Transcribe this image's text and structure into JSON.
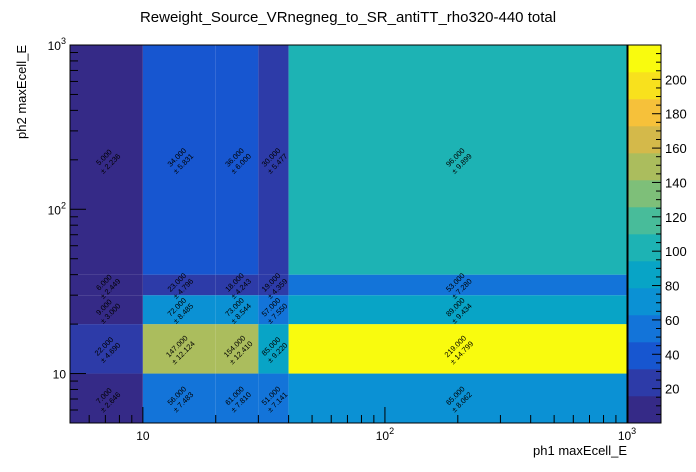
{
  "chart_data": {
    "type": "heatmap",
    "title": "Reweight_Source_VRnegneg_to_SR_antiTT_rho320-440 total",
    "xlabel": "ph1 maxEcell_E",
    "ylabel": "ph2 maxEcell_E",
    "x_scale": "log",
    "y_scale": "log",
    "xlim": [
      5,
      1000
    ],
    "ylim": [
      5,
      1000
    ],
    "x_edges": [
      5,
      10,
      20,
      30,
      40,
      1000
    ],
    "y_edges": [
      5,
      10,
      20,
      30,
      40,
      1000
    ],
    "x_tick_labels": [
      {
        "value": 10,
        "base": "10",
        "exp": ""
      },
      {
        "value": 100,
        "base": "10",
        "exp": "2"
      },
      {
        "value": 1000,
        "base": "10",
        "exp": "3"
      }
    ],
    "y_tick_labels": [
      {
        "value": 10,
        "base": "10",
        "exp": ""
      },
      {
        "value": 100,
        "base": "10",
        "exp": "2"
      },
      {
        "value": 1000,
        "base": "10",
        "exp": "3"
      }
    ],
    "cells": [
      {
        "xi": 0,
        "yi": 0,
        "value": 7,
        "error": 2.646,
        "value_label": "7.000",
        "error_label": "± 2.646"
      },
      {
        "xi": 1,
        "yi": 0,
        "value": 56,
        "error": 7.483,
        "value_label": "56.000",
        "error_label": "± 7.483"
      },
      {
        "xi": 2,
        "yi": 0,
        "value": 61,
        "error": 7.81,
        "value_label": "61.000",
        "error_label": "± 7.810"
      },
      {
        "xi": 3,
        "yi": 0,
        "value": 51,
        "error": 7.141,
        "value_label": "51.000",
        "error_label": "± 7.141"
      },
      {
        "xi": 4,
        "yi": 0,
        "value": 65,
        "error": 8.062,
        "value_label": "65.000",
        "error_label": "± 8.062"
      },
      {
        "xi": 0,
        "yi": 1,
        "value": 22,
        "error": 4.69,
        "value_label": "22.000",
        "error_label": "± 4.690"
      },
      {
        "xi": 1,
        "yi": 1,
        "value": 147,
        "error": 12.124,
        "value_label": "147.000",
        "error_label": "± 12.124"
      },
      {
        "xi": 2,
        "yi": 1,
        "value": 154,
        "error": 12.41,
        "value_label": "154.000",
        "error_label": "± 12.410"
      },
      {
        "xi": 3,
        "yi": 1,
        "value": 85,
        "error": 9.22,
        "value_label": "85.000",
        "error_label": "± 9.220"
      },
      {
        "xi": 4,
        "yi": 1,
        "value": 219,
        "error": 14.799,
        "value_label": "219.000",
        "error_label": "± 14.799"
      },
      {
        "xi": 0,
        "yi": 2,
        "value": 9,
        "error": 3.0,
        "value_label": "9.000",
        "error_label": "± 3.000"
      },
      {
        "xi": 1,
        "yi": 2,
        "value": 72,
        "error": 8.485,
        "value_label": "72.000",
        "error_label": "± 8.485"
      },
      {
        "xi": 2,
        "yi": 2,
        "value": 73,
        "error": 8.544,
        "value_label": "73.000",
        "error_label": "± 8.544"
      },
      {
        "xi": 3,
        "yi": 2,
        "value": 57,
        "error": 7.55,
        "value_label": "57.000",
        "error_label": "± 7.550"
      },
      {
        "xi": 4,
        "yi": 2,
        "value": 89,
        "error": 9.434,
        "value_label": "89.000",
        "error_label": "± 9.434"
      },
      {
        "xi": 0,
        "yi": 3,
        "value": 6,
        "error": 2.449,
        "value_label": "6.000",
        "error_label": "± 2.449"
      },
      {
        "xi": 1,
        "yi": 3,
        "value": 23,
        "error": 4.796,
        "value_label": "23.000",
        "error_label": "± 4.796"
      },
      {
        "xi": 2,
        "yi": 3,
        "value": 18,
        "error": 4.243,
        "value_label": "18.000",
        "error_label": "± 4.243"
      },
      {
        "xi": 3,
        "yi": 3,
        "value": 19,
        "error": 4.359,
        "value_label": "19.000",
        "error_label": "± 4.359"
      },
      {
        "xi": 4,
        "yi": 3,
        "value": 53,
        "error": 7.28,
        "value_label": "53.000",
        "error_label": "± 7.280"
      },
      {
        "xi": 0,
        "yi": 4,
        "value": 5,
        "error": 2.236,
        "value_label": "5.000",
        "error_label": "± 2.236"
      },
      {
        "xi": 1,
        "yi": 4,
        "value": 34,
        "error": 5.831,
        "value_label": "34.000",
        "error_label": "± 5.831"
      },
      {
        "xi": 2,
        "yi": 4,
        "value": 36,
        "error": 6.0,
        "value_label": "36.000",
        "error_label": "± 6.000"
      },
      {
        "xi": 3,
        "yi": 4,
        "value": 30,
        "error": 5.477,
        "value_label": "30.000",
        "error_label": "± 5.477"
      },
      {
        "xi": 4,
        "yi": 4,
        "value": 96,
        "error": 9.899,
        "value_label": "96.000",
        "error_label": "± 9.899"
      }
    ],
    "zlim": [
      0,
      220
    ],
    "z_ticks": [
      20,
      40,
      60,
      80,
      100,
      120,
      140,
      160,
      180,
      200
    ],
    "colormap": [
      "#352a87",
      "#2d3ba8",
      "#1756d0",
      "#1374d9",
      "#0b91d4",
      "#08a4c6",
      "#1db3b4",
      "#48bc9a",
      "#7ebf79",
      "#abbd5d",
      "#d4b94a",
      "#f6c13a",
      "#f8e11d",
      "#f9fb0e"
    ],
    "grid": false,
    "legend": "colorbar-right"
  }
}
